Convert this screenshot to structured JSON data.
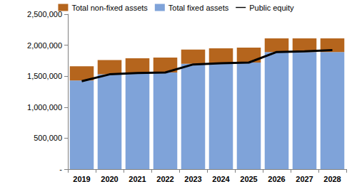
{
  "chart_data": {
    "type": "bar",
    "stacked": true,
    "categories": [
      "2019",
      "2020",
      "2021",
      "2022",
      "2023",
      "2024",
      "2025",
      "2026",
      "2027",
      "2028"
    ],
    "series": [
      {
        "name": "Total non-fixed assets",
        "type": "bar",
        "color": "#b5651d",
        "values": [
          230000,
          230000,
          240000,
          240000,
          230000,
          240000,
          240000,
          220000,
          220000,
          220000
        ]
      },
      {
        "name": "Total fixed assets",
        "type": "bar",
        "color": "#7fa3d9",
        "values": [
          1430000,
          1530000,
          1550000,
          1560000,
          1700000,
          1710000,
          1720000,
          1890000,
          1890000,
          1890000
        ]
      },
      {
        "name": "Public equity",
        "type": "line",
        "color": "#000000",
        "line_style": "solid",
        "values": [
          1420000,
          1530000,
          1550000,
          1560000,
          1690000,
          1710000,
          1720000,
          1890000,
          1900000,
          1920000
        ]
      }
    ],
    "ylim": [
      0,
      2500000
    ],
    "yticks": [
      {
        "value": 0,
        "label": "-"
      },
      {
        "value": 500000,
        "label": "500,000"
      },
      {
        "value": 1000000,
        "label": "1,000,000"
      },
      {
        "value": 1500000,
        "label": "1,500,000"
      },
      {
        "value": 2000000,
        "label": "2,000,000"
      },
      {
        "value": 2500000,
        "label": "2,500,000"
      }
    ],
    "grid": false,
    "legend": "top"
  }
}
